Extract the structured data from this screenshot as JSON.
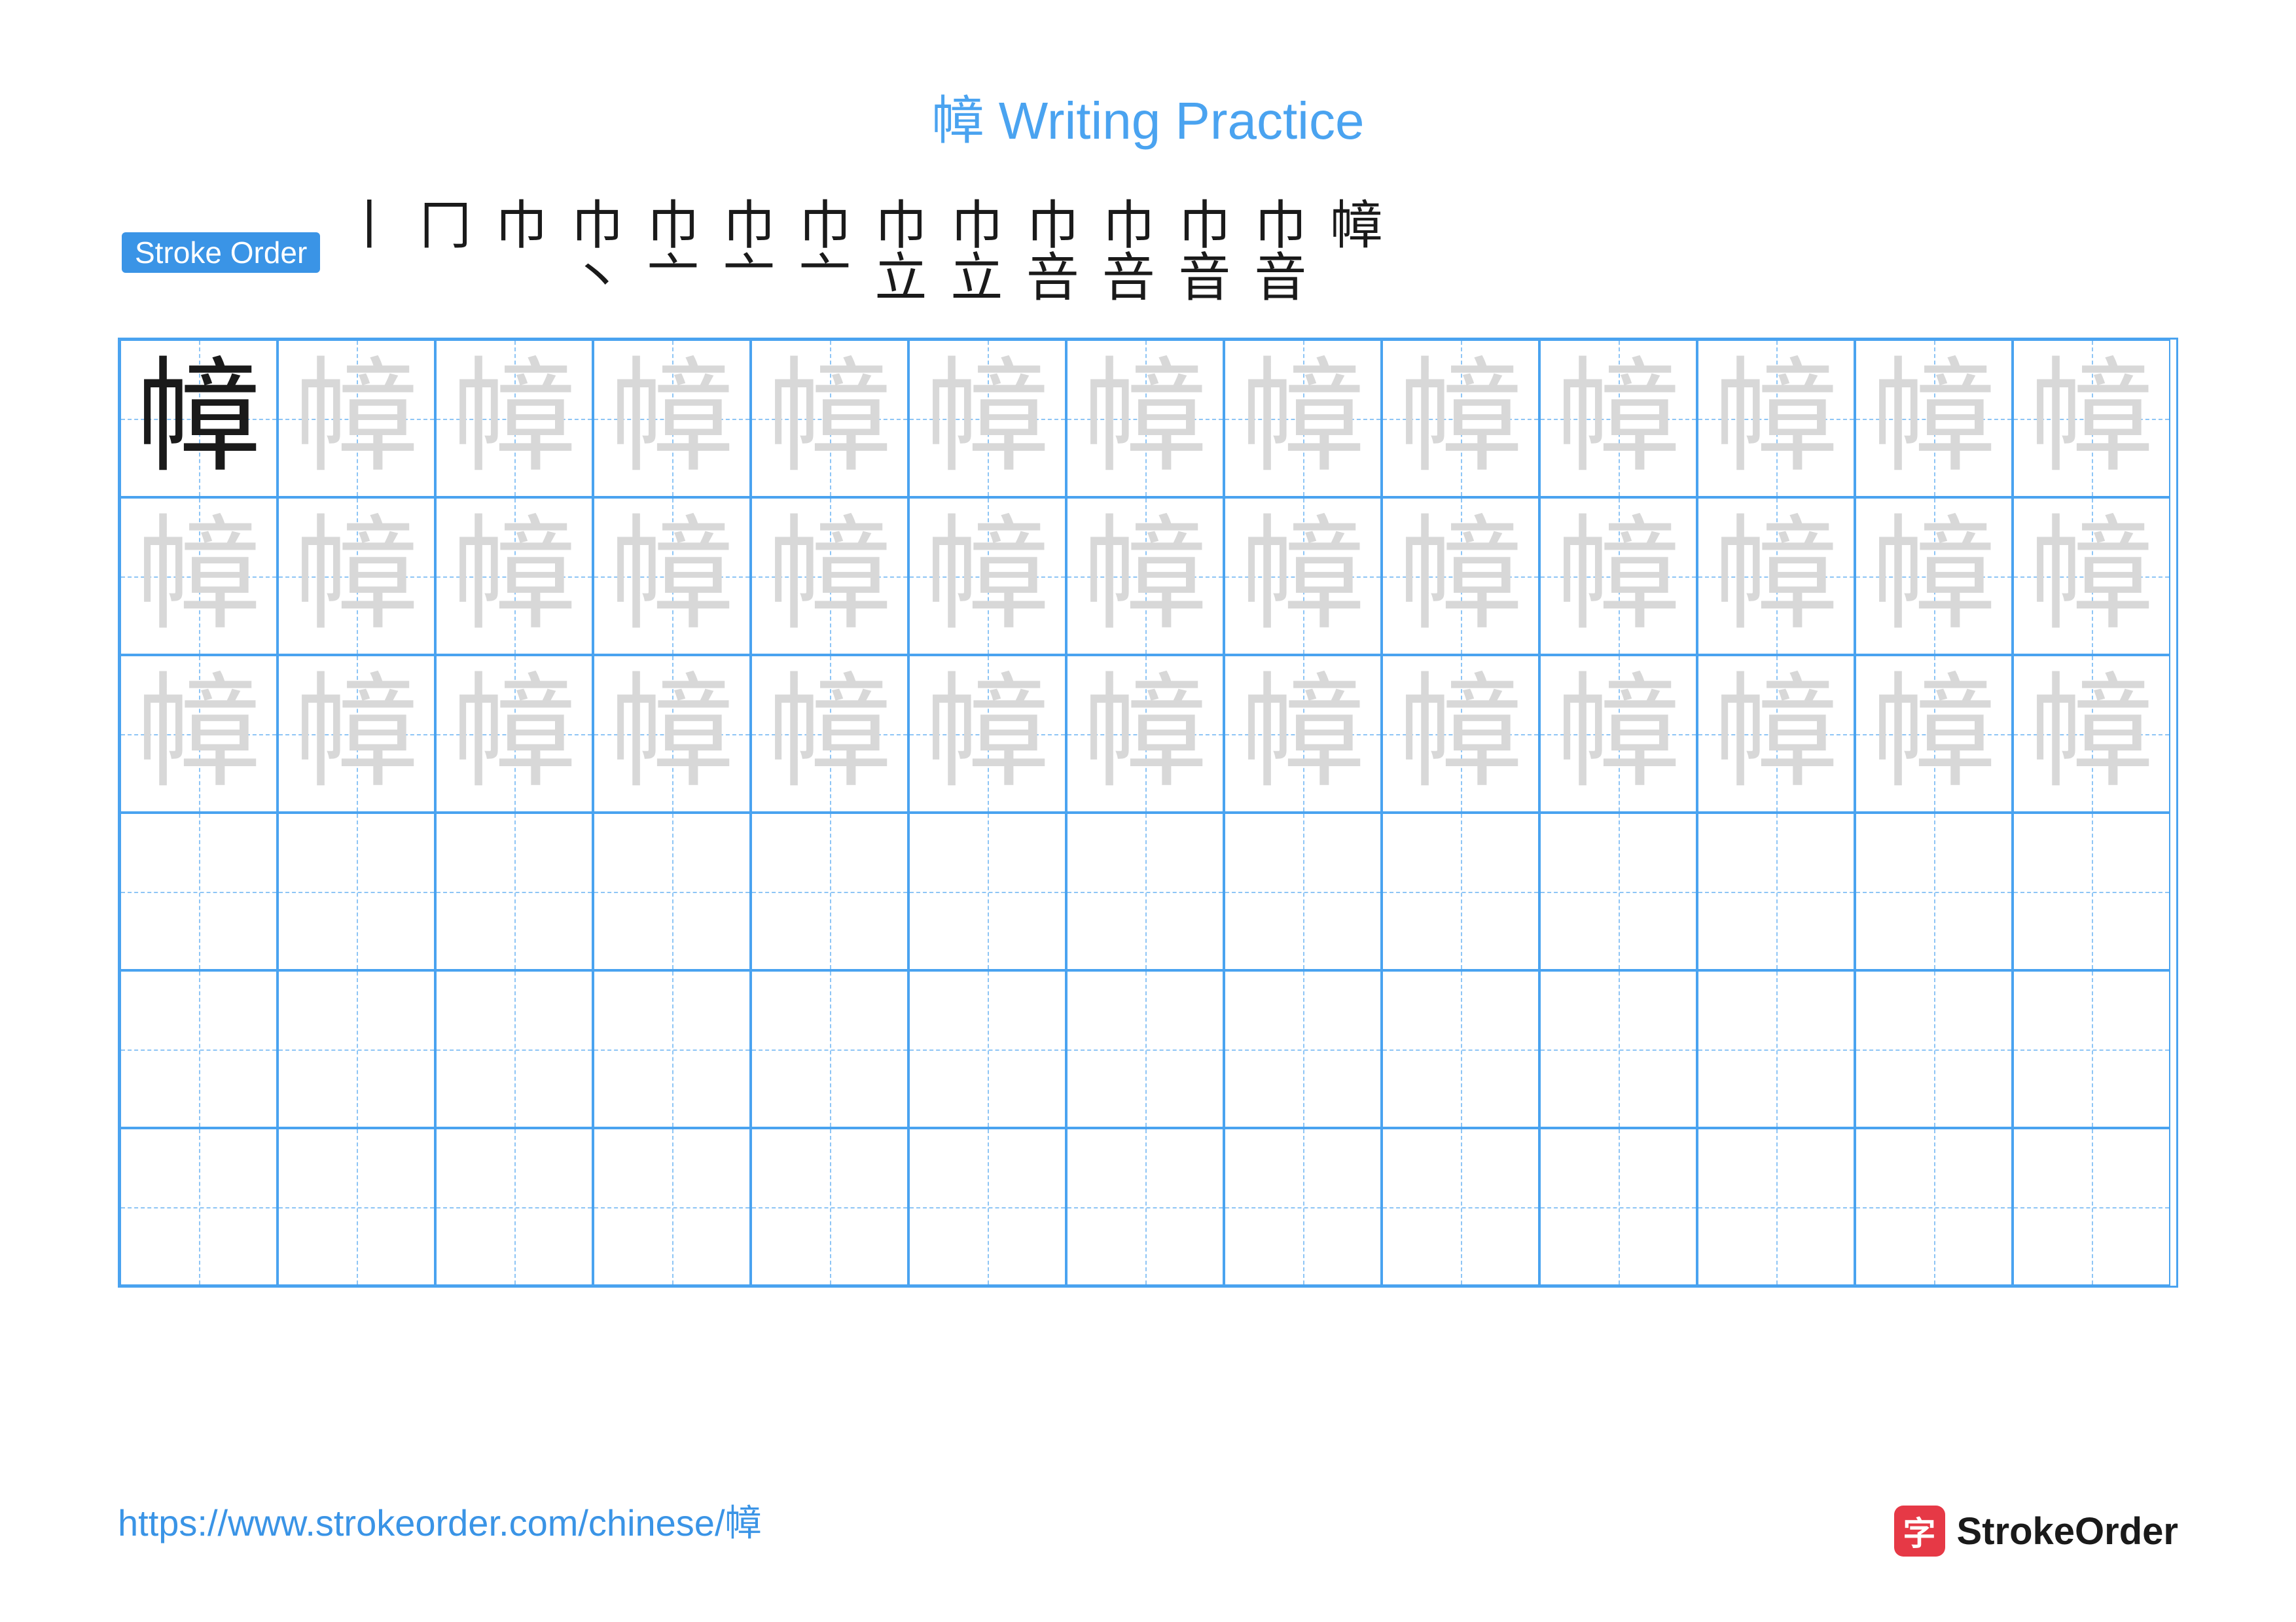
{
  "title": "幛 Writing Practice",
  "character": "幛",
  "stroke_label": "Stroke Order",
  "stroke_steps": [
    "丨",
    "冂",
    "巾",
    "巾丶",
    "巾亠",
    "巾亠",
    "巾亠",
    "巾立",
    "巾立",
    "巾咅",
    "巾咅",
    "巾音",
    "巾音",
    "幛"
  ],
  "grid": {
    "cols": 13,
    "rows": 6,
    "trace_rows": 3,
    "solid_cell": {
      "row": 0,
      "col": 0
    }
  },
  "colors": {
    "title": "#4aa3f0",
    "label_bg": "#3a94e6",
    "label_text": "#ffffff",
    "stroke_current": "#e63946",
    "stroke_done": "#1a1a1a",
    "grid_border": "#4aa3f0",
    "guide_line": "#8ec5f5",
    "char_solid": "#1a1a1a",
    "char_trace": "#d8d8d8",
    "footer": "#3a94e6",
    "brand_icon_bg": "#e63946",
    "brand_text": "#1a1a1a",
    "background": "#ffffff"
  },
  "typography": {
    "title_size": 80,
    "label_size": 46,
    "stroke_size": 80,
    "char_size": 190,
    "footer_size": 56,
    "brand_size": 58
  },
  "footer_url": "https://www.strokeorder.com/chinese/幛",
  "brand": {
    "icon_char": "字",
    "name": "StrokeOrder"
  }
}
